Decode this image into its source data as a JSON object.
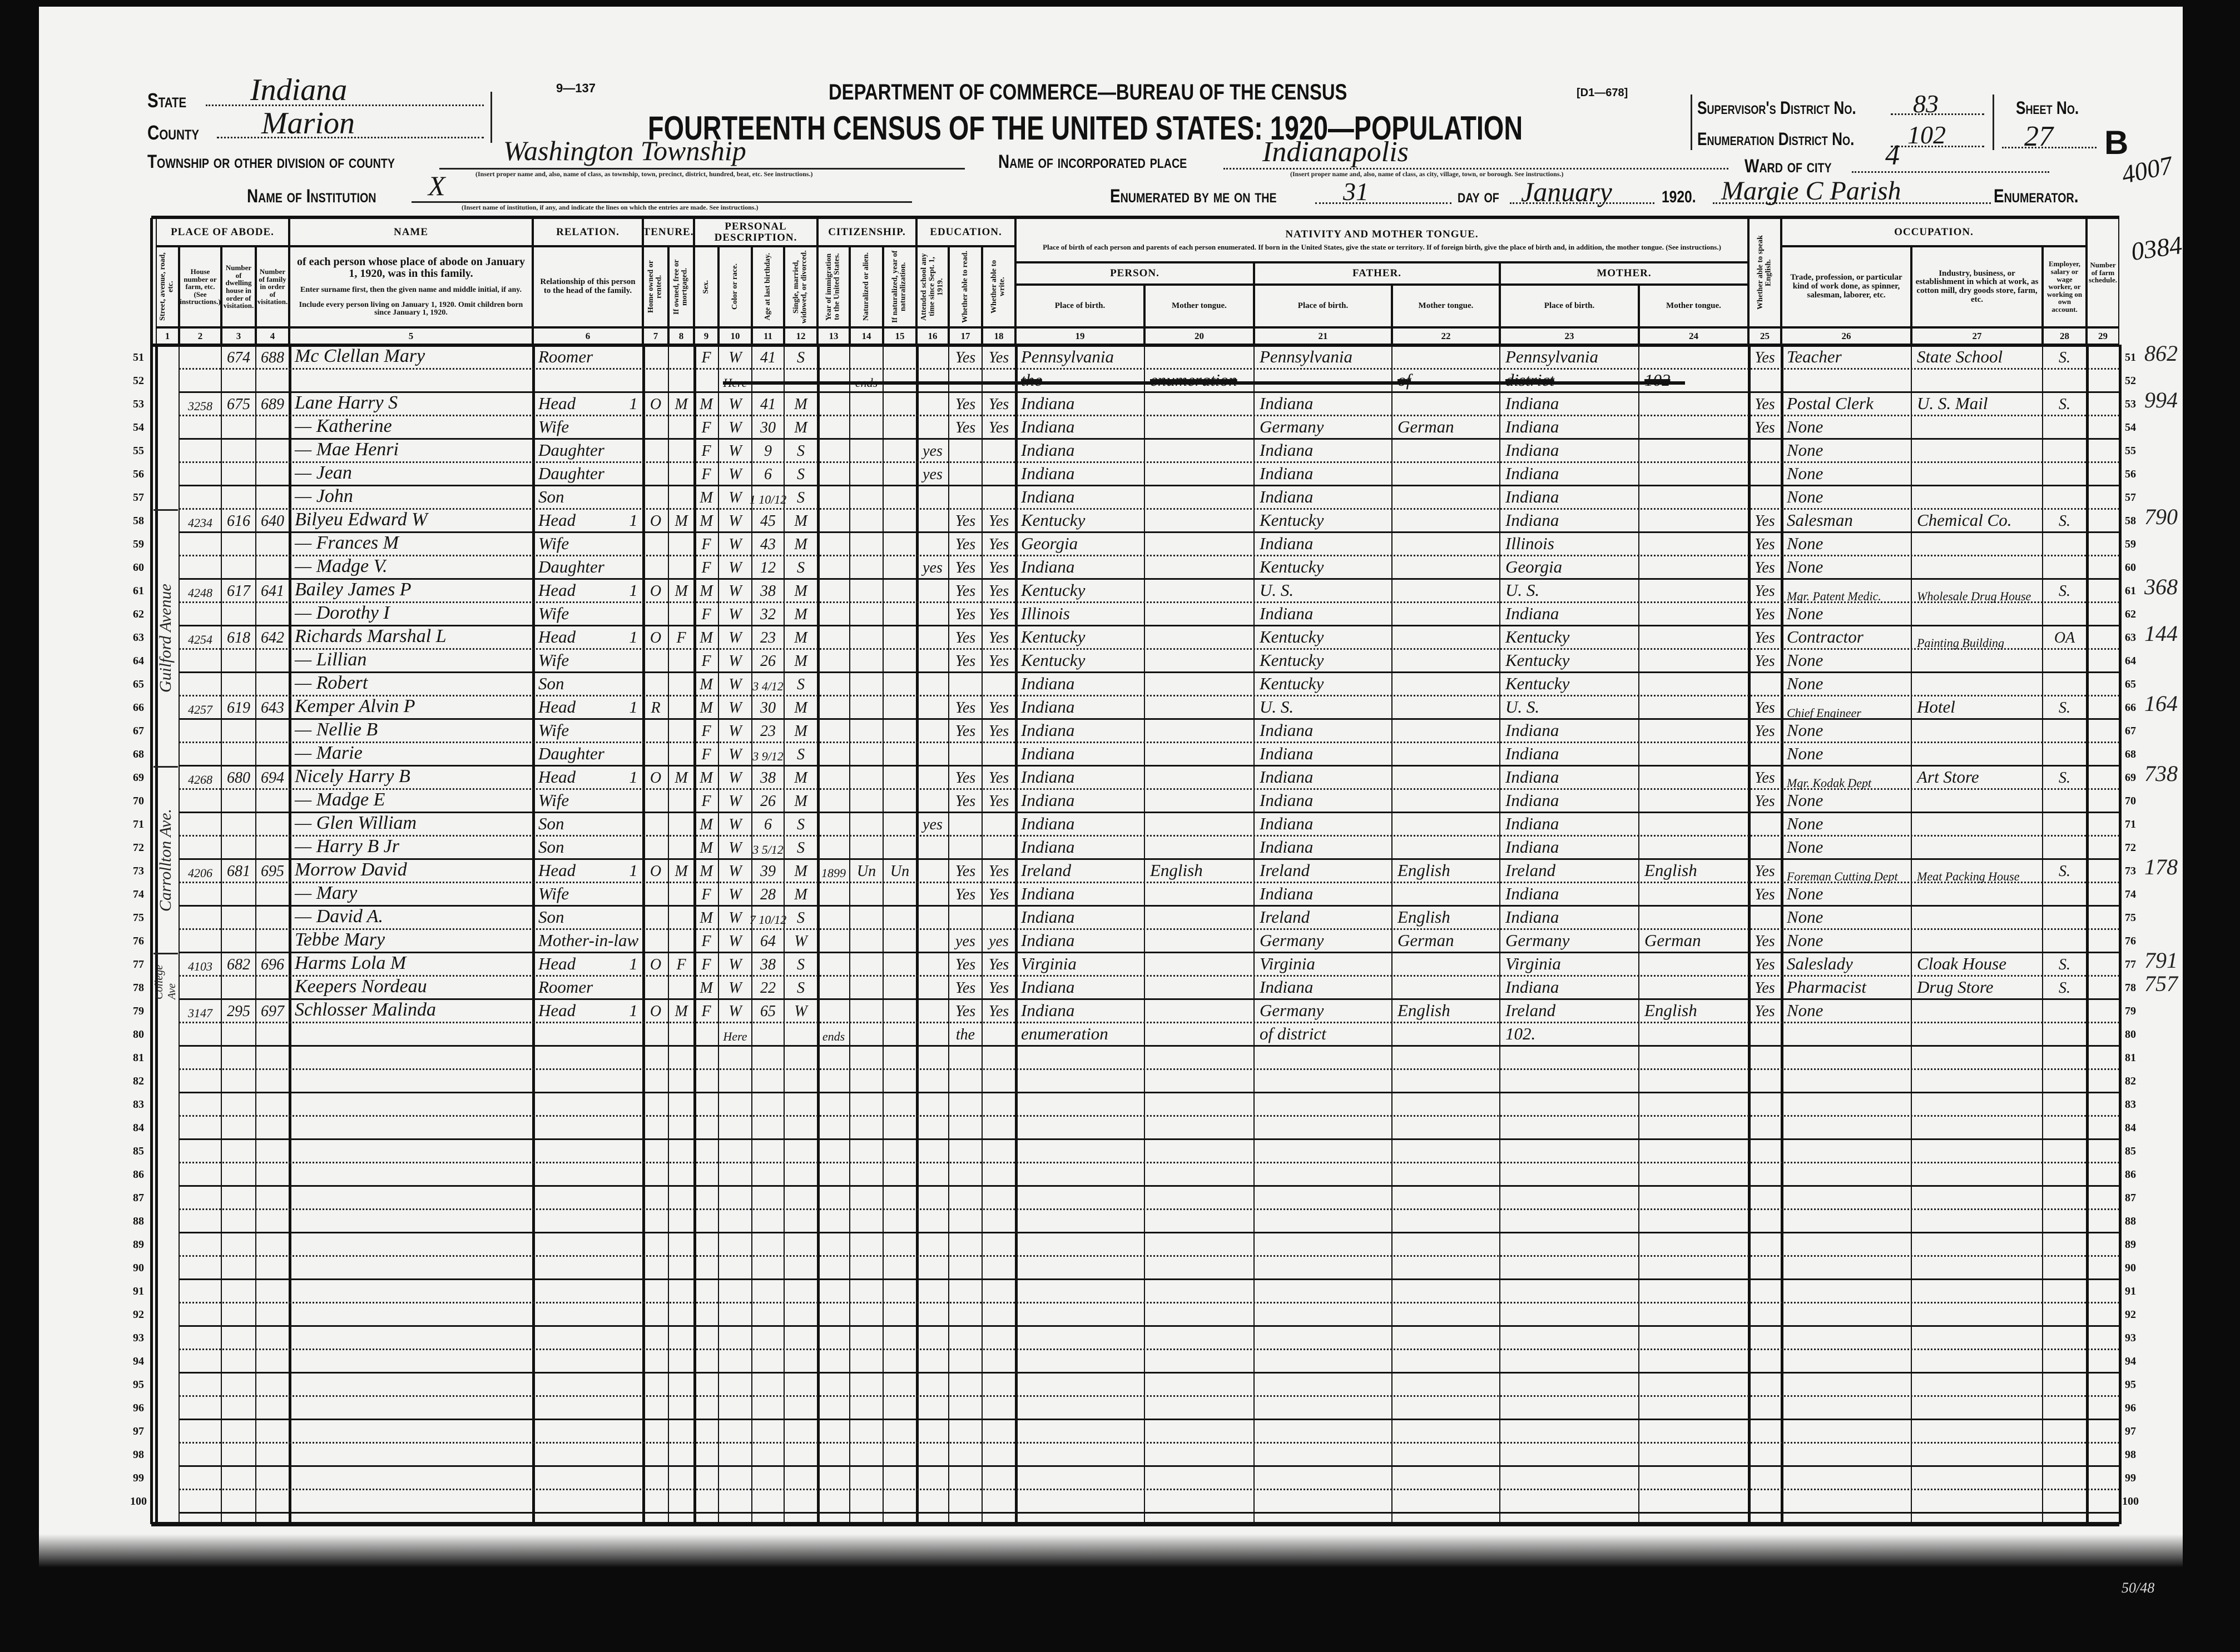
{
  "form": {
    "form_no": "9—137",
    "department": "DEPARTMENT OF COMMERCE—BUREAU OF THE CENSUS",
    "code": "[D1—678]",
    "title": "FOURTEENTH CENSUS OF THE UNITED STATES: 1920—POPULATION"
  },
  "fields": {
    "state_label": "State",
    "state": "Indiana",
    "county_label": "County",
    "county": "Marion",
    "township_label": "Township or other division of county",
    "township": "Washington Township",
    "township_hint": "(Insert proper name and, also, name of class, as township, town, precinct, district, hundred, beat, etc. See instructions.)",
    "institution_label": "Name of Institution",
    "institution": "X",
    "institution_hint": "(Insert name of institution, if any, and indicate the lines on which the entries are made. See instructions.)",
    "place_label": "Name of incorporated place",
    "place": "Indianapolis",
    "place_hint": "(Insert proper name and, also, name of class, as city, village, town, or borough. See instructions.)",
    "ward_label": "Ward of city",
    "ward": "4",
    "enumerated_label": "Enumerated by me on the",
    "day": "31",
    "dayof_label": "day of",
    "month": "January",
    "year": "1920.",
    "enumerator": "Margie C Parish",
    "enumerator_label": "Enumerator.",
    "supervisor_label": "Supervisor's District No.",
    "supervisor": "83",
    "ed_label": "Enumeration District No.",
    "ed": "102",
    "sheet_label": "Sheet No.",
    "sheet": "27",
    "sheet_side": "B",
    "corner_note": "4007",
    "margin_note": "0384"
  },
  "header": {
    "groups": [
      "PLACE OF ABODE.",
      "NAME",
      "RELATION.",
      "TENURE.",
      "PERSONAL DESCRIPTION.",
      "CITIZENSHIP.",
      "EDUCATION.",
      "NATIVITY AND MOTHER TONGUE.",
      "OCCUPATION."
    ],
    "name_desc": [
      "of each person whose place of abode on January 1, 1920, was in this family.",
      "Enter surname first, then the given name and middle initial, if any.",
      "Include every person living on January 1, 1920. Omit children born since January 1, 1920."
    ],
    "nativity_desc": "Place of birth of each person and parents of each person enumerated. If born in the United States, give the state or territory. If of foreign birth, give the place of birth and, in addition, the mother tongue. (See instructions.)",
    "nativity_sub": [
      "PERSON.",
      "FATHER.",
      "MOTHER."
    ],
    "place_of_birth": "Place of birth.",
    "mother_tongue": "Mother tongue.",
    "columns": [
      "Street, avenue, road, etc.",
      "House number or farm, etc. (See instructions.)",
      "Number of dwelling house in order of visitation.",
      "Number of family in order of visitation.",
      "",
      "Relationship of this person to the head of the family.",
      "Home owned or rented.",
      "If owned, free or mortgaged.",
      "Sex.",
      "Color or race.",
      "Age at last birthday.",
      "Single, married, widowed, or divorced.",
      "Year of immigration to the United States.",
      "Naturalized or alien.",
      "If naturalized, year of naturalization.",
      "Attended school any time since Sept. 1, 1919.",
      "Whether able to read.",
      "Whether able to write.",
      "",
      "",
      "",
      "",
      "",
      "",
      "Whether able to speak English.",
      "Trade, profession, or particular kind of work done, as spinner, salesman, laborer, etc.",
      "Industry, business, or establishment in which at work, as cotton mill, dry goods store, farm, etc.",
      "Employer, salary or wage worker, or working on own account.",
      "Number of farm schedule."
    ],
    "column_numbers": [
      "1",
      "2",
      "3",
      "4",
      "5",
      "6",
      "7",
      "8",
      "9",
      "10",
      "11",
      "12",
      "13",
      "14",
      "15",
      "16",
      "17",
      "18",
      "19",
      "20",
      "21",
      "22",
      "23",
      "24",
      "25",
      "26",
      "27",
      "28",
      "29"
    ]
  },
  "streets": [
    {
      "name": "Guilford Avenue",
      "from": 58,
      "to": 68
    },
    {
      "name": "Carrollton Ave.",
      "from": 69,
      "to": 76
    },
    {
      "name": "College Ave",
      "from": 77,
      "to": 78
    }
  ],
  "rows": [
    {
      "line": "51",
      "dwelling": "674",
      "family": "688",
      "name": "Mc Clellan Mary",
      "relation": "Roomer",
      "sex": "F",
      "race": "W",
      "age": "41",
      "marital": "S",
      "read": "Yes",
      "write": "Yes",
      "pob": "Pennsylvania",
      "fpob": "Pennsylvania",
      "mpob": "Pennsylvania",
      "english": "Yes",
      "trade": "Teacher",
      "industry": "State School",
      "class": "S.",
      "note": "862"
    },
    {
      "line": "52",
      "race": "Here",
      "natz": "ends",
      "pob": "the",
      "mt": "enumeration",
      "fmt": "of",
      "mpob": "district",
      "mmt": "102",
      "struck": true
    },
    {
      "line": "53",
      "house": "3258",
      "dwelling": "675",
      "family": "689",
      "name": "Lane Harry S",
      "relation": "Head",
      "mark": "1",
      "tenure": "O",
      "mortgage": "M",
      "sex": "M",
      "race": "W",
      "age": "41",
      "marital": "M",
      "read": "Yes",
      "write": "Yes",
      "pob": "Indiana",
      "fpob": "Indiana",
      "mpob": "Indiana",
      "english": "Yes",
      "trade": "Postal Clerk",
      "industry": "U. S. Mail",
      "class": "S.",
      "note": "994"
    },
    {
      "line": "54",
      "name": "— Katherine",
      "relation": "Wife",
      "sex": "F",
      "race": "W",
      "age": "30",
      "marital": "M",
      "read": "Yes",
      "write": "Yes",
      "pob": "Indiana",
      "fpob": "Germany",
      "fmt": "German",
      "mpob": "Indiana",
      "english": "Yes",
      "trade": "None"
    },
    {
      "line": "55",
      "name": "— Mae Henri",
      "relation": "Daughter",
      "sex": "F",
      "race": "W",
      "age": "9",
      "marital": "S",
      "school": "yes",
      "pob": "Indiana",
      "fpob": "Indiana",
      "mpob": "Indiana",
      "trade": "None"
    },
    {
      "line": "56",
      "name": "— Jean",
      "relation": "Daughter",
      "sex": "F",
      "race": "W",
      "age": "6",
      "marital": "S",
      "school": "yes",
      "pob": "Indiana",
      "fpob": "Indiana",
      "mpob": "Indiana",
      "trade": "None"
    },
    {
      "line": "57",
      "name": "— John",
      "relation": "Son",
      "sex": "M",
      "race": "W",
      "age": "1 10/12",
      "marital": "S",
      "pob": "Indiana",
      "fpob": "Indiana",
      "mpob": "Indiana",
      "trade": "None"
    },
    {
      "line": "58",
      "house": "4234",
      "dwelling": "616",
      "family": "640",
      "name": "Bilyeu Edward W",
      "relation": "Head",
      "mark": "1",
      "tenure": "O",
      "mortgage": "M",
      "sex": "M",
      "race": "W",
      "age": "45",
      "marital": "M",
      "read": "Yes",
      "write": "Yes",
      "pob": "Kentucky",
      "fpob": "Kentucky",
      "mpob": "Indiana",
      "english": "Yes",
      "trade": "Salesman",
      "industry": "Chemical Co.",
      "class": "S.",
      "note": "790"
    },
    {
      "line": "59",
      "name": "— Frances M",
      "relation": "Wife",
      "sex": "F",
      "race": "W",
      "age": "43",
      "marital": "M",
      "read": "Yes",
      "write": "Yes",
      "pob": "Georgia",
      "fpob": "Indiana",
      "mpob": "Illinois",
      "english": "Yes",
      "trade": "None"
    },
    {
      "line": "60",
      "name": "— Madge V.",
      "relation": "Daughter",
      "sex": "F",
      "race": "W",
      "age": "12",
      "marital": "S",
      "school": "yes",
      "read": "Yes",
      "write": "Yes",
      "pob": "Indiana",
      "fpob": "Kentucky",
      "mpob": "Georgia",
      "english": "Yes",
      "trade": "None"
    },
    {
      "line": "61",
      "house": "4248",
      "dwelling": "617",
      "family": "641",
      "name": "Bailey James P",
      "relation": "Head",
      "mark": "1",
      "tenure": "O",
      "mortgage": "M",
      "sex": "M",
      "race": "W",
      "age": "38",
      "marital": "M",
      "read": "Yes",
      "write": "Yes",
      "pob": "Kentucky",
      "fpob": "U. S.",
      "mpob": "U. S.",
      "english": "Yes",
      "trade": "Mgr. Patent Medic.",
      "industry": "Wholesale Drug House",
      "class": "S.",
      "note": "368"
    },
    {
      "line": "62",
      "name": "— Dorothy I",
      "relation": "Wife",
      "sex": "F",
      "race": "W",
      "age": "32",
      "marital": "M",
      "read": "Yes",
      "write": "Yes",
      "pob": "Illinois",
      "fpob": "Indiana",
      "mpob": "Indiana",
      "english": "Yes",
      "trade": "None"
    },
    {
      "line": "63",
      "house": "4254",
      "dwelling": "618",
      "family": "642",
      "name": "Richards Marshal L",
      "relation": "Head",
      "mark": "1",
      "tenure": "O",
      "mortgage": "F",
      "sex": "M",
      "race": "W",
      "age": "23",
      "marital": "M",
      "read": "Yes",
      "write": "Yes",
      "pob": "Kentucky",
      "fpob": "Kentucky",
      "mpob": "Kentucky",
      "english": "Yes",
      "trade": "Contractor",
      "industry": "Painting Building",
      "class": "OA",
      "note": "144"
    },
    {
      "line": "64",
      "name": "— Lillian",
      "relation": "Wife",
      "sex": "F",
      "race": "W",
      "age": "26",
      "marital": "M",
      "read": "Yes",
      "write": "Yes",
      "pob": "Kentucky",
      "fpob": "Kentucky",
      "mpob": "Kentucky",
      "english": "Yes",
      "trade": "None"
    },
    {
      "line": "65",
      "name": "— Robert",
      "relation": "Son",
      "sex": "M",
      "race": "W",
      "age": "3 4/12",
      "marital": "S",
      "pob": "Indiana",
      "fpob": "Kentucky",
      "mpob": "Kentucky",
      "trade": "None"
    },
    {
      "line": "66",
      "house": "4257",
      "dwelling": "619",
      "family": "643",
      "name": "Kemper Alvin P",
      "relation": "Head",
      "mark": "1",
      "tenure": "R",
      "sex": "M",
      "race": "W",
      "age": "30",
      "marital": "M",
      "read": "Yes",
      "write": "Yes",
      "pob": "Indiana",
      "fpob": "U. S.",
      "mpob": "U. S.",
      "english": "Yes",
      "trade": "Chief Engineer",
      "industry": "Hotel",
      "class": "S.",
      "note": "164"
    },
    {
      "line": "67",
      "name": "— Nellie B",
      "relation": "Wife",
      "sex": "F",
      "race": "W",
      "age": "23",
      "marital": "M",
      "read": "Yes",
      "write": "Yes",
      "pob": "Indiana",
      "fpob": "Indiana",
      "mpob": "Indiana",
      "english": "Yes",
      "trade": "None"
    },
    {
      "line": "68",
      "name": "— Marie",
      "relation": "Daughter",
      "sex": "F",
      "race": "W",
      "age": "3 9/12",
      "marital": "S",
      "pob": "Indiana",
      "fpob": "Indiana",
      "mpob": "Indiana",
      "trade": "None"
    },
    {
      "line": "69",
      "house": "4268",
      "dwelling": "680",
      "family": "694",
      "name": "Nicely Harry B",
      "relation": "Head",
      "mark": "1",
      "tenure": "O",
      "mortgage": "M",
      "sex": "M",
      "race": "W",
      "age": "38",
      "marital": "M",
      "read": "Yes",
      "write": "Yes",
      "pob": "Indiana",
      "fpob": "Indiana",
      "mpob": "Indiana",
      "english": "Yes",
      "trade": "Mgr. Kodak Dept",
      "industry": "Art Store",
      "class": "S.",
      "note": "738"
    },
    {
      "line": "70",
      "name": "— Madge E",
      "relation": "Wife",
      "sex": "F",
      "race": "W",
      "age": "26",
      "marital": "M",
      "read": "Yes",
      "write": "Yes",
      "pob": "Indiana",
      "fpob": "Indiana",
      "mpob": "Indiana",
      "english": "Yes",
      "trade": "None"
    },
    {
      "line": "71",
      "name": "— Glen William",
      "relation": "Son",
      "sex": "M",
      "race": "W",
      "age": "6",
      "marital": "S",
      "school": "yes",
      "pob": "Indiana",
      "fpob": "Indiana",
      "mpob": "Indiana",
      "trade": "None"
    },
    {
      "line": "72",
      "name": "— Harry B Jr",
      "relation": "Son",
      "sex": "M",
      "race": "W",
      "age": "3 5/12",
      "marital": "S",
      "pob": "Indiana",
      "fpob": "Indiana",
      "mpob": "Indiana",
      "trade": "None"
    },
    {
      "line": "73",
      "house": "4206",
      "dwelling": "681",
      "family": "695",
      "name": "Morrow David",
      "relation": "Head",
      "mark": "1",
      "tenure": "O",
      "mortgage": "M",
      "sex": "M",
      "race": "W",
      "age": "39",
      "marital": "M",
      "immig": "1899",
      "natz": "Un",
      "natyear": "Un",
      "read": "Yes",
      "write": "Yes",
      "pob": "Ireland",
      "mt": "English",
      "fpob": "Ireland",
      "fmt": "English",
      "mpob": "Ireland",
      "mmt": "English",
      "english": "Yes",
      "trade": "Foreman Cutting Dept",
      "industry": "Meat Packing House",
      "class": "S.",
      "note": "178"
    },
    {
      "line": "74",
      "name": "— Mary",
      "relation": "Wife",
      "sex": "F",
      "race": "W",
      "age": "28",
      "marital": "M",
      "read": "Yes",
      "write": "Yes",
      "pob": "Indiana",
      "fpob": "Indiana",
      "mpob": "Indiana",
      "english": "Yes",
      "trade": "None"
    },
    {
      "line": "75",
      "name": "— David A.",
      "relation": "Son",
      "sex": "M",
      "race": "W",
      "age": "7 10/12",
      "marital": "S",
      "pob": "Indiana",
      "fpob": "Ireland",
      "fmt": "English",
      "mpob": "Indiana",
      "trade": "None"
    },
    {
      "line": "76",
      "name": "Tebbe Mary",
      "relation": "Mother-in-law",
      "sex": "F",
      "race": "W",
      "age": "64",
      "marital": "W",
      "read": "yes",
      "write": "yes",
      "pob": "Indiana",
      "fpob": "Germany",
      "fmt": "German",
      "mpob": "Germany",
      "mmt": "German",
      "english": "Yes",
      "trade": "None"
    },
    {
      "line": "77",
      "house": "4103",
      "dwelling": "682",
      "family": "696",
      "name": "Harms Lola M",
      "relation": "Head",
      "mark": "1",
      "tenure": "O",
      "mortgage": "F",
      "sex": "F",
      "race": "W",
      "age": "38",
      "marital": "S",
      "read": "Yes",
      "write": "Yes",
      "pob": "Virginia",
      "fpob": "Virginia",
      "mpob": "Virginia",
      "english": "Yes",
      "trade": "Saleslady",
      "industry": "Cloak House",
      "class": "S.",
      "note": "791"
    },
    {
      "line": "78",
      "name": "Keepers Nordeau",
      "relation": "Roomer",
      "sex": "M",
      "race": "W",
      "age": "22",
      "marital": "S",
      "read": "Yes",
      "write": "Yes",
      "pob": "Indiana",
      "fpob": "Indiana",
      "mpob": "Indiana",
      "english": "Yes",
      "trade": "Pharmacist",
      "industry": "Drug Store",
      "class": "S.",
      "note": "757"
    },
    {
      "line": "79",
      "house": "3147",
      "dwelling": "295",
      "family": "697",
      "name": "Schlosser Malinda",
      "relation": "Head",
      "mark": "1",
      "tenure": "O",
      "mortgage": "M",
      "sex": "F",
      "race": "W",
      "age": "65",
      "marital": "W",
      "read": "Yes",
      "write": "Yes",
      "pob": "Indiana",
      "fpob": "Germany",
      "fmt": "English",
      "mpob": "Ireland",
      "mmt": "English",
      "english": "Yes",
      "trade": "None"
    },
    {
      "line": "80",
      "race": "Here",
      "immig": "ends",
      "read": "the",
      "pob": "enumeration",
      "fpob": "of district",
      "mpob": "102."
    }
  ],
  "blank_lines": [
    "81",
    "82",
    "83",
    "84",
    "85",
    "86",
    "87",
    "88",
    "89",
    "90",
    "91",
    "92",
    "93",
    "94",
    "95",
    "96",
    "97",
    "98",
    "99",
    "100"
  ],
  "footer_note": "50/48"
}
